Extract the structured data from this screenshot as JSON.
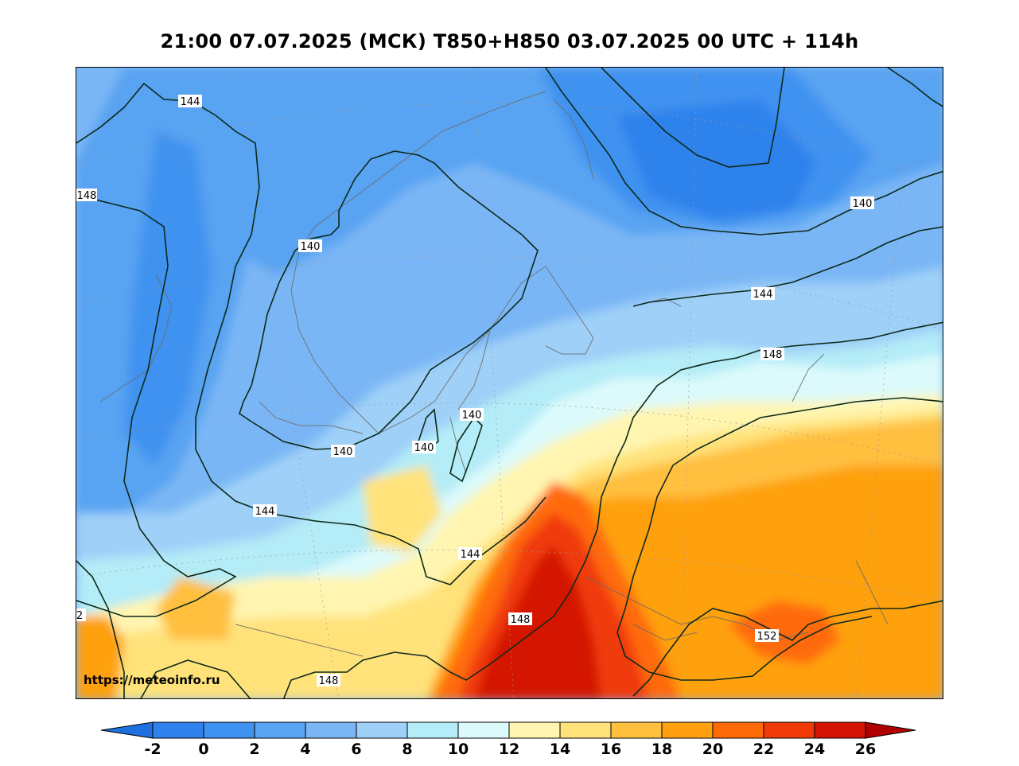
{
  "title": "21:00 07.07.2025 (МСК) T850+H850 03.07.2025 00 UTC + 114h",
  "watermark": "https://meteoinfo.ru",
  "map": {
    "contour_labels": [
      "144",
      "148",
      "140",
      "140",
      "140",
      "140",
      "140",
      "144",
      "148",
      "144",
      "144",
      "148",
      "148",
      "152",
      "2"
    ]
  },
  "colorbar": {
    "ticks": [
      "-2",
      "0",
      "2",
      "4",
      "6",
      "8",
      "10",
      "12",
      "14",
      "16",
      "18",
      "20",
      "22",
      "24",
      "26"
    ],
    "colors": [
      "#1f6fe0",
      "#2f82ec",
      "#3f92f0",
      "#59a3f2",
      "#7ab6f5",
      "#9fd0f8",
      "#b4ecf7",
      "#dcfafb",
      "#fff5b0",
      "#ffe27a",
      "#ffc040",
      "#ffa010",
      "#ff6a08",
      "#f03a08",
      "#d41405",
      "#b00000"
    ]
  }
}
